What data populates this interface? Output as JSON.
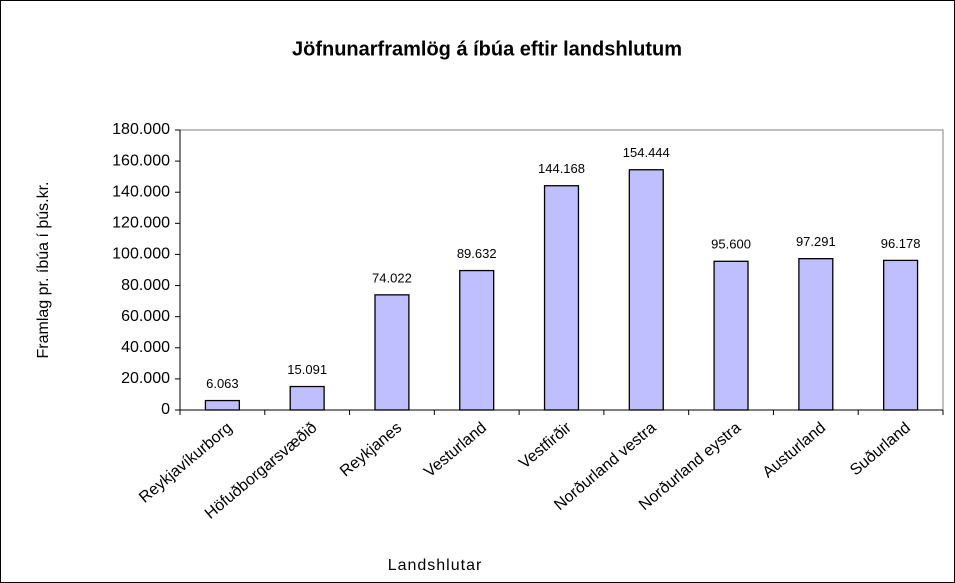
{
  "chart_data": {
    "type": "bar",
    "title": "Jöfnunarframlög á íbúa eftir landshlutum",
    "x_label": "Landshlutar",
    "y_label": "Framlag pr. íbúa í þús.kr.",
    "categories": [
      "Reykjavíkurborg",
      "Höfuðborgarsvæðið",
      "Reykjanes",
      "Vesturland",
      "Vestfirðir",
      "Norðurland vestra",
      "Norðurland eystra",
      "Austurland",
      "Suðurland"
    ],
    "values": [
      6063,
      15091,
      74022,
      89632,
      144168,
      154444,
      95600,
      97291,
      96178
    ],
    "value_labels": [
      "6.063",
      "15.091",
      "74.022",
      "89.632",
      "144.168",
      "154.444",
      "95.600",
      "97.291",
      "96.178"
    ],
    "color": "#bfbfff",
    "ylim": [
      0,
      180000
    ],
    "yticks": [
      0,
      {
        "value": 20000,
        "label": "20.000"
      },
      {
        "value": 40000,
        "label": "40.000"
      },
      {
        "value": 60000,
        "label": "60.000"
      },
      {
        "value": 80000,
        "label": "80.000"
      },
      {
        "value": 100000,
        "label": "100.000"
      },
      {
        "value": 120000,
        "label": "120.000"
      },
      {
        "value": 140000,
        "label": "140.000"
      },
      {
        "value": 160000,
        "label": "160.000"
      },
      {
        "value": 180000,
        "label": "180.000"
      }
    ],
    "grid": false
  }
}
